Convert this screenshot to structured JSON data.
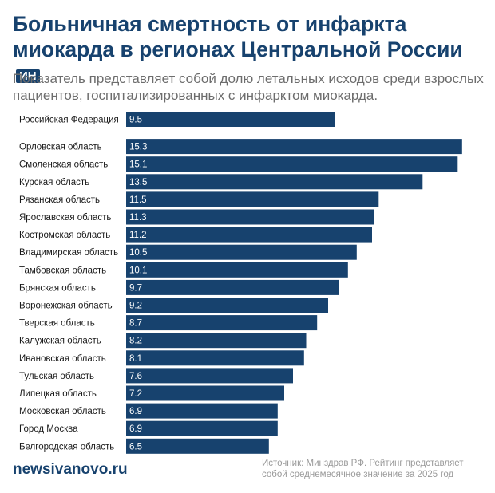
{
  "header": {
    "title": "Больничная смертность от инфаркта миокарда в регионах Центральной России",
    "badge": "ИН",
    "subtitle": "Показатель представляет собой долю летальных исходов среди взрослых пациентов, госпитализированных с инфарктом миокарда."
  },
  "footer": {
    "site": "newsivanovo.ru",
    "source": "Источник: Минздрав РФ. Рейтинг представляет собой среднемесячное значение за 2025 год"
  },
  "colors": {
    "bar": "#17426e",
    "title": "#17426e",
    "subtitle": "#6d6d6d"
  },
  "chart_data": {
    "type": "bar",
    "orientation": "horizontal",
    "categories": [
      "Российская Федерация",
      "Орловская область",
      "Смоленская область",
      "Курская область",
      "Рязанская область",
      "Ярославская область",
      "Костромская область",
      "Владимирская область",
      "Тамбовская область",
      "Брянская область",
      "Воронежская область",
      "Тверская область",
      "Калужская область",
      "Ивановская область",
      "Тульская область",
      "Липецкая область",
      "Московская область",
      "Город Москва",
      "Белгородская область"
    ],
    "values": [
      9.5,
      15.3,
      15.1,
      13.5,
      11.5,
      11.3,
      11.2,
      10.5,
      10.1,
      9.7,
      9.2,
      8.7,
      8.2,
      8.1,
      7.6,
      7.2,
      6.9,
      6.9,
      6.5
    ],
    "value_labels": [
      "9.5",
      "15.3",
      "15.1",
      "13.5",
      "11.5",
      "11.3",
      "11.2",
      "10.5",
      "10.1",
      "9.7",
      "9.2",
      "8.7",
      "8.2",
      "8.1",
      "7.6",
      "7.2",
      "6.9",
      "6.9",
      "6.5"
    ],
    "title": "",
    "xlabel": "",
    "ylabel": "",
    "grid": false,
    "legend": "none"
  }
}
